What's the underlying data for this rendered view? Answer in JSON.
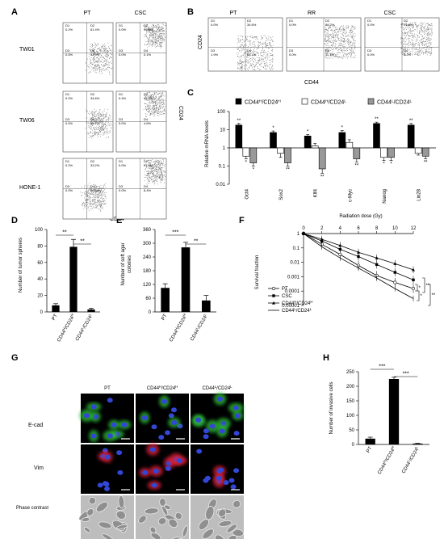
{
  "panels": {
    "A": {
      "label": "A",
      "columns": [
        "PT",
        "CSC"
      ],
      "rows": [
        "TW01",
        "TW06",
        "HONE-1"
      ],
      "xlabel": "CD44",
      "ylabel": "CD24",
      "quads": [
        [
          [
            "0.2%",
            "61.4%",
            "0.5%",
            "37.9%"
          ],
          [
            "0.0%",
            "99.9%",
            "0.0%",
            "0.1%"
          ]
        ],
        [
          [
            "0.2%",
            "34.6%",
            "0.0%",
            "65.1%"
          ],
          [
            "0.4%",
            "95.0%",
            "0.0%",
            "4.6%"
          ]
        ],
        [
          [
            "0.2%",
            "33.2%",
            "0.0%",
            "66.5%"
          ],
          [
            "0.0%",
            "91.6%",
            "0.0%",
            "8.4%"
          ]
        ]
      ]
    },
    "B": {
      "label": "B",
      "columns": [
        "PT",
        "RR",
        "CSC"
      ],
      "xlabel": "CD44",
      "ylabel": "CD24",
      "quads": [
        [
          "0.0%",
          "34.6%",
          "1.9%",
          "63.1%"
        ],
        [
          "0.0%",
          "88.2%",
          "0.0%",
          "11.7%"
        ],
        [
          "0.0%",
          "91.8%",
          "0.0%",
          "8.2%"
        ]
      ]
    },
    "C": {
      "label": "C",
      "chart_data": {
        "type": "bar",
        "ylabel": "Relative mRNA levels",
        "yscale": "log",
        "ylim": [
          0.01,
          100
        ],
        "yticks": [
          "100",
          "10",
          "1",
          "0.1",
          "0.01"
        ],
        "legend_position": "top",
        "categories": [
          "Oct4",
          "Sox2",
          "Klf4",
          "c-Myc",
          "Nanog",
          "Lin28"
        ],
        "series": [
          {
            "name": "CD44H/CD24H",
            "legend_main": "CD44",
            "legend_sup1": "H",
            "legend_mid": "/CD24",
            "legend_sup2": "H",
            "color": "#000000",
            "values": [
              18,
              7,
              4.5,
              7,
              22,
              18
            ],
            "errors": [
              4,
              1.5,
              1,
              2,
              4,
              4
            ],
            "sig": [
              "**",
              "*",
              "*",
              "*",
              "**",
              "**"
            ]
          },
          {
            "name": "CD44H/CD24L",
            "legend_main": "CD44",
            "legend_sup1": "H",
            "legend_mid": "/CD24",
            "legend_sup2": "L",
            "color": "#ffffff",
            "values": [
              0.35,
              0.5,
              1.3,
              2,
              0.3,
              0.5
            ],
            "errors": [
              0.1,
              0.2,
              0.5,
              0.8,
              0.1,
              0.1
            ],
            "sig": [
              "*",
              "",
              "",
              "",
              "*",
              ""
            ]
          },
          {
            "name": "CD44L/CD24L",
            "legend_main": "CD44",
            "legend_sup1": "L",
            "legend_mid": "/CD24",
            "legend_sup2": "L",
            "color": "#999999",
            "values": [
              0.15,
              0.15,
              0.07,
              0.25,
              0.3,
              0.35
            ],
            "errors": [
              0.05,
              0.05,
              0.03,
              0.08,
              0.1,
              0.1
            ],
            "sig": [
              "*",
              "**",
              "**",
              "**",
              "*",
              "**"
            ]
          }
        ]
      }
    },
    "D": {
      "label": "D",
      "chart_data": {
        "type": "bar",
        "ylabel": "Number of tumor spheres",
        "ylim": [
          0,
          100
        ],
        "yticks": [
          "0",
          "20",
          "40",
          "60",
          "80",
          "100"
        ],
        "categories": [
          "PT",
          "CD44H/CD24H",
          "CD44L/CD24L"
        ],
        "cat_parts": [
          [
            "PT",
            "",
            "",
            ""
          ],
          [
            "CD44",
            "H",
            "/CD24",
            "H"
          ],
          [
            "CD44",
            "L",
            "/CD24",
            "L"
          ]
        ],
        "values": [
          8,
          79,
          3
        ],
        "errors": [
          2,
          9,
          1.5
        ],
        "sig": [
          {
            "from": 0,
            "to": 1,
            "label": "**"
          },
          {
            "from": 1,
            "to": 2,
            "label": "**"
          }
        ]
      }
    },
    "E": {
      "label": "E",
      "chart_data": {
        "type": "bar",
        "ylabel": "Number of soft agar colonies",
        "ylabel_lines": [
          "Number of soft agar",
          "colonies"
        ],
        "ylim": [
          0,
          360
        ],
        "yticks": [
          "0",
          "60",
          "120",
          "180",
          "240",
          "300",
          "360"
        ],
        "categories": [
          "PT",
          "CD44H/CD24H",
          "CD44L/CD24L"
        ],
        "cat_parts": [
          [
            "PT",
            "",
            "",
            ""
          ],
          [
            "CD44",
            "H",
            "/CD24",
            "H"
          ],
          [
            "CD44",
            "L",
            "/CD24",
            "L"
          ]
        ],
        "values": [
          105,
          282,
          50
        ],
        "errors": [
          18,
          22,
          22
        ],
        "sig": [
          {
            "from": 0,
            "to": 1,
            "label": "***"
          },
          {
            "from": 1,
            "to": 2,
            "label": "**"
          }
        ]
      }
    },
    "F": {
      "label": "F",
      "chart_data": {
        "type": "line",
        "xlabel": "Radiation dose (Gy)",
        "ylabel": "Survival fraction",
        "xaxis_position": "top",
        "yscale": "log",
        "xlim": [
          0,
          12
        ],
        "ylim": [
          1e-05,
          1
        ],
        "xticks": [
          "0",
          "2",
          "4",
          "6",
          "8",
          "10",
          "12"
        ],
        "yticks": [
          "1",
          "0.1",
          "0.01",
          "0.001",
          "0.0001",
          "0.00001"
        ],
        "x": [
          0,
          2,
          4,
          6,
          8,
          10,
          12
        ],
        "series": [
          {
            "name": "PT",
            "marker": "circle-open",
            "values": [
              1,
              0.18,
              0.035,
              0.006,
              0.0012,
              0.0004,
              0.00015
            ]
          },
          {
            "name": "CSC",
            "marker": "square",
            "values": [
              1,
              0.3,
              0.08,
              0.025,
              0.007,
              0.002,
              0.0006
            ]
          },
          {
            "name": "CD44H/CD24H",
            "marker": "triangle",
            "values": [
              1,
              0.4,
              0.15,
              0.05,
              0.02,
              0.008,
              0.003
            ]
          },
          {
            "name": "CD44L/CD24L",
            "marker": "none",
            "values": [
              1,
              0.12,
              0.02,
              0.004,
              0.0008,
              0.00015,
              3e-05
            ]
          }
        ],
        "legend_parts": [
          [
            "PT",
            "",
            "",
            ""
          ],
          [
            "CSC",
            "",
            "",
            ""
          ],
          [
            "CD44",
            "H",
            "/CD24",
            "H"
          ],
          [
            "CD44",
            "L",
            "/CD24",
            "L"
          ]
        ],
        "sig": [
          "*",
          "**",
          "*",
          "**"
        ]
      }
    },
    "G": {
      "label": "G",
      "columns": [
        "PT",
        "CD44H/CD24H",
        "CD44L/CD24L"
      ],
      "column_parts": [
        [
          "PT",
          "",
          "",
          ""
        ],
        [
          "CD44",
          "H",
          "/CD24",
          "H"
        ],
        [
          "CD44",
          "L",
          "/CD24",
          "L"
        ]
      ],
      "rows": [
        "E-cad",
        "Vim",
        "Phase contrast"
      ]
    },
    "H": {
      "label": "H",
      "chart_data": {
        "type": "bar",
        "ylabel": "Number of invasive cells",
        "ylim": [
          0,
          250
        ],
        "yticks": [
          "0",
          "50",
          "100",
          "150",
          "200",
          "250"
        ],
        "categories": [
          "PT",
          "CD44H/CD24H",
          "CD44L/CD24L"
        ],
        "cat_parts": [
          [
            "PT",
            "",
            "",
            ""
          ],
          [
            "CD44",
            "H",
            "/CD24",
            "H"
          ],
          [
            "CD44",
            "L",
            "/CD24",
            "L"
          ]
        ],
        "values": [
          20,
          225,
          3
        ],
        "errors": [
          5,
          6,
          1
        ],
        "sig": [
          {
            "from": 0,
            "to": 1,
            "label": "***"
          },
          {
            "from": 1,
            "to": 2,
            "label": "***"
          }
        ]
      }
    }
  }
}
